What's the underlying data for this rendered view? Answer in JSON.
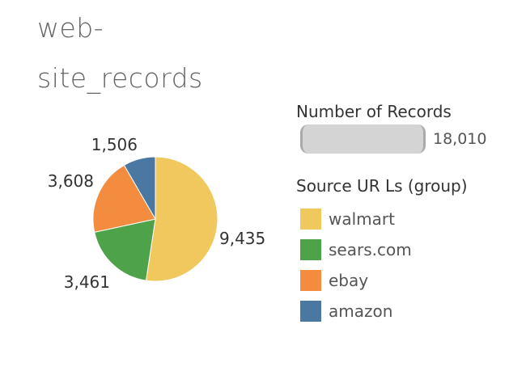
{
  "title": {
    "line1": "web-",
    "line2": "site_records"
  },
  "size_legend": {
    "title": "Number of Records",
    "max_value": "18,010"
  },
  "color_legend": {
    "title": "Source UR Ls (group)"
  },
  "chart_data": {
    "type": "pie",
    "title": "web-site_records",
    "slices": [
      {
        "category": "walmart",
        "value": 9435,
        "label": "9,435",
        "color": "#F1C85E"
      },
      {
        "category": "sears.com",
        "value": 3461,
        "label": "3,461",
        "color": "#4EA24A"
      },
      {
        "category": "ebay",
        "value": 3608,
        "label": "3,608",
        "color": "#F48C3F"
      },
      {
        "category": "amazon",
        "value": 1506,
        "label": "1,506",
        "color": "#4B78A3"
      }
    ],
    "legend_placement": "right"
  }
}
